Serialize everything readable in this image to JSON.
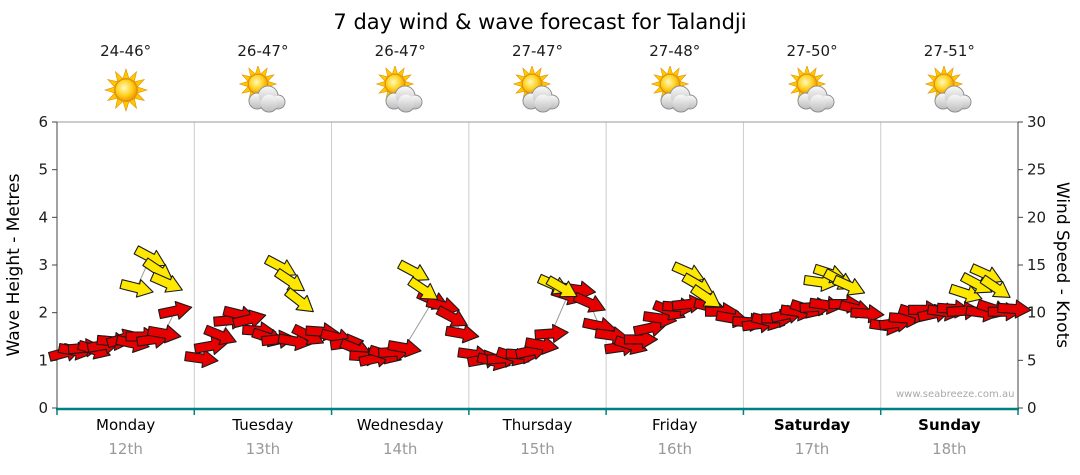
{
  "title": "7 day wind & wave forecast for Talandji",
  "watermark": "www.seabreeze.com.au",
  "colors": {
    "red": "#e60000",
    "yellow": "#ffe800",
    "axis_bottom": "#008080",
    "grid": "#cccccc",
    "axis_line": "#444444",
    "series_line": "#9a9a9a",
    "date_text": "#999999",
    "watermark_text": "#a8a8a8"
  },
  "days": [
    {
      "name": "Monday",
      "date": "12th",
      "temp": "24-46°",
      "icon": "sunny",
      "bold": false
    },
    {
      "name": "Tuesday",
      "date": "13th",
      "temp": "26-47°",
      "icon": "partly-cloudy",
      "bold": false
    },
    {
      "name": "Wednesday",
      "date": "14th",
      "temp": "26-47°",
      "icon": "partly-cloudy",
      "bold": false
    },
    {
      "name": "Thursday",
      "date": "15th",
      "temp": "27-47°",
      "icon": "partly-cloudy",
      "bold": false
    },
    {
      "name": "Friday",
      "date": "16th",
      "temp": "27-48°",
      "icon": "partly-cloudy",
      "bold": false
    },
    {
      "name": "Saturday",
      "date": "17th",
      "temp": "27-50°",
      "icon": "partly-cloudy",
      "bold": true
    },
    {
      "name": "Sunday",
      "date": "18th",
      "temp": "27-51°",
      "icon": "partly-cloudy",
      "bold": true
    }
  ],
  "chart_data": {
    "type": "scatter",
    "marker": "directional-wind-arrow",
    "title": "7 day wind & wave forecast for Talandji",
    "ylabel_left": "Wave Height - Metres",
    "ylabel_right": "Wind Speed - Knots",
    "ylim_left": [
      0,
      6
    ],
    "ylim_right": [
      0,
      30
    ],
    "yticks_left": [
      0,
      1,
      2,
      3,
      4,
      5,
      6
    ],
    "yticks_right": [
      0,
      5,
      10,
      15,
      20,
      25,
      30
    ],
    "x_range_days": [
      0,
      7
    ],
    "categories": [
      "Monday 12th",
      "Tuesday 13th",
      "Wednesday 14th",
      "Thursday 15th",
      "Friday 16th",
      "Saturday 17th",
      "Sunday 18th"
    ],
    "grid": "vertical-day-separators",
    "legend": "none",
    "point_format": "[day_x (0-7, Monday=0), wind_speed_knots, arrow_direction_deg]",
    "series": [
      {
        "name": "wind-speed",
        "color": "red",
        "points": [
          [
            0.06,
            5.8,
            -15
          ],
          [
            0.13,
            6.0,
            10
          ],
          [
            0.2,
            6.3,
            -5
          ],
          [
            0.27,
            6.1,
            18
          ],
          [
            0.34,
            6.6,
            -10
          ],
          [
            0.41,
            7.0,
            5
          ],
          [
            0.48,
            7.3,
            -18
          ],
          [
            0.55,
            6.8,
            12
          ],
          [
            0.62,
            7.5,
            0
          ],
          [
            0.7,
            7.2,
            -8
          ],
          [
            0.78,
            7.8,
            10
          ],
          [
            0.86,
            10.2,
            -12
          ],
          [
            1.05,
            5.2,
            8
          ],
          [
            1.12,
            6.5,
            -10
          ],
          [
            1.19,
            7.6,
            22
          ],
          [
            1.26,
            9.2,
            -5
          ],
          [
            1.33,
            9.8,
            14
          ],
          [
            1.4,
            9.3,
            -14
          ],
          [
            1.47,
            8.1,
            4
          ],
          [
            1.54,
            7.4,
            18
          ],
          [
            1.61,
            7.2,
            -6
          ],
          [
            1.73,
            7.0,
            10
          ],
          [
            1.83,
            7.6,
            26
          ],
          [
            1.93,
            8.0,
            4
          ],
          [
            2.04,
            7.4,
            14
          ],
          [
            2.11,
            6.8,
            -8
          ],
          [
            2.18,
            6.2,
            22
          ],
          [
            2.25,
            5.4,
            4
          ],
          [
            2.32,
            5.2,
            -12
          ],
          [
            2.39,
            5.6,
            18
          ],
          [
            2.46,
            5.9,
            -4
          ],
          [
            2.53,
            6.3,
            10
          ],
          [
            2.74,
            11.3,
            24
          ],
          [
            2.81,
            10.7,
            14
          ],
          [
            2.88,
            9.5,
            28
          ],
          [
            2.95,
            7.8,
            10
          ],
          [
            3.04,
            5.6,
            8
          ],
          [
            3.11,
            5.1,
            -10
          ],
          [
            3.18,
            4.9,
            14
          ],
          [
            3.25,
            5.2,
            -4
          ],
          [
            3.32,
            5.4,
            18
          ],
          [
            3.39,
            5.6,
            4
          ],
          [
            3.46,
            6.0,
            -12
          ],
          [
            3.53,
            6.6,
            10
          ],
          [
            3.6,
            7.8,
            -4
          ],
          [
            3.72,
            11.8,
            18
          ],
          [
            3.8,
            12.4,
            8
          ],
          [
            3.88,
            11.0,
            24
          ],
          [
            3.95,
            8.6,
            12
          ],
          [
            4.04,
            7.6,
            8
          ],
          [
            4.11,
            6.4,
            -8
          ],
          [
            4.18,
            6.6,
            18
          ],
          [
            4.25,
            7.2,
            0
          ],
          [
            4.32,
            8.4,
            -12
          ],
          [
            4.39,
            9.4,
            8
          ],
          [
            4.46,
            10.2,
            22
          ],
          [
            4.53,
            10.6,
            4
          ],
          [
            4.6,
            10.9,
            -6
          ],
          [
            4.76,
            10.6,
            14
          ],
          [
            4.84,
            10.1,
            0
          ],
          [
            4.92,
            9.4,
            10
          ],
          [
            5.04,
            9.0,
            4
          ],
          [
            5.11,
            8.8,
            -8
          ],
          [
            5.18,
            9.1,
            14
          ],
          [
            5.25,
            9.4,
            0
          ],
          [
            5.32,
            9.8,
            -12
          ],
          [
            5.39,
            10.1,
            8
          ],
          [
            5.46,
            10.4,
            18
          ],
          [
            5.53,
            10.6,
            -4
          ],
          [
            5.6,
            10.8,
            8
          ],
          [
            5.74,
            10.9,
            0
          ],
          [
            5.82,
            10.4,
            14
          ],
          [
            5.9,
            9.9,
            4
          ],
          [
            6.04,
            8.6,
            8
          ],
          [
            6.11,
            8.9,
            -8
          ],
          [
            6.18,
            9.4,
            4
          ],
          [
            6.25,
            9.9,
            18
          ],
          [
            6.32,
            10.3,
            0
          ],
          [
            6.39,
            9.9,
            -12
          ],
          [
            6.46,
            10.1,
            8
          ],
          [
            6.53,
            10.4,
            4
          ],
          [
            6.6,
            10.2,
            -4
          ],
          [
            6.74,
            10.0,
            8
          ],
          [
            6.82,
            10.4,
            18
          ],
          [
            6.9,
            10.1,
            0
          ],
          [
            6.97,
            10.4,
            4
          ]
        ]
      },
      {
        "name": "afternoon-peak-wind",
        "color": "yellow",
        "points": [
          [
            0.58,
            12.6,
            14
          ],
          [
            0.68,
            15.8,
            28
          ],
          [
            0.74,
            14.4,
            34
          ],
          [
            0.8,
            13.1,
            24
          ],
          [
            1.63,
            14.8,
            28
          ],
          [
            1.7,
            13.3,
            34
          ],
          [
            1.77,
            11.2,
            38
          ],
          [
            2.6,
            14.3,
            28
          ],
          [
            2.67,
            12.4,
            34
          ],
          [
            3.62,
            12.9,
            24
          ],
          [
            3.68,
            12.6,
            30
          ],
          [
            4.6,
            14.2,
            24
          ],
          [
            4.67,
            12.9,
            30
          ],
          [
            4.73,
            11.6,
            34
          ],
          [
            5.56,
            13.2,
            8
          ],
          [
            5.63,
            14.1,
            18
          ],
          [
            5.7,
            13.4,
            28
          ],
          [
            5.77,
            12.8,
            24
          ],
          [
            6.62,
            12.0,
            18
          ],
          [
            6.7,
            13.0,
            28
          ],
          [
            6.77,
            14.0,
            24
          ],
          [
            6.84,
            12.6,
            34
          ]
        ]
      }
    ]
  }
}
